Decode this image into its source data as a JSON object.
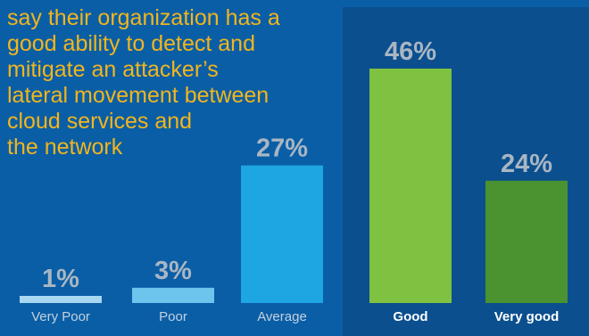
{
  "headline_lines": [
    "say their organization has a",
    "good ability to detect and",
    "mitigate an attacker’s",
    "lateral movement between",
    "cloud services and",
    "the network"
  ],
  "colors": {
    "background": "#0a5ea6",
    "highlight_panel": "#0b4f8e",
    "headline": "#f2b51d",
    "very_poor": "#a9d7f2",
    "poor": "#6dc5ee",
    "average": "#1ea6e3",
    "good": "#7fc241",
    "very_good": "#4b9231"
  },
  "chart_data": {
    "type": "bar",
    "categories": [
      "Very Poor",
      "Poor",
      "Average",
      "Good",
      "Very good"
    ],
    "values": [
      1,
      3,
      27,
      46,
      24
    ],
    "value_labels": [
      "1%",
      "3%",
      "27%",
      "46%",
      "24%"
    ],
    "unit": "%",
    "highlighted_categories": [
      "Good",
      "Very good"
    ],
    "ylim": [
      0,
      46
    ],
    "grid": false,
    "legend": "none"
  }
}
